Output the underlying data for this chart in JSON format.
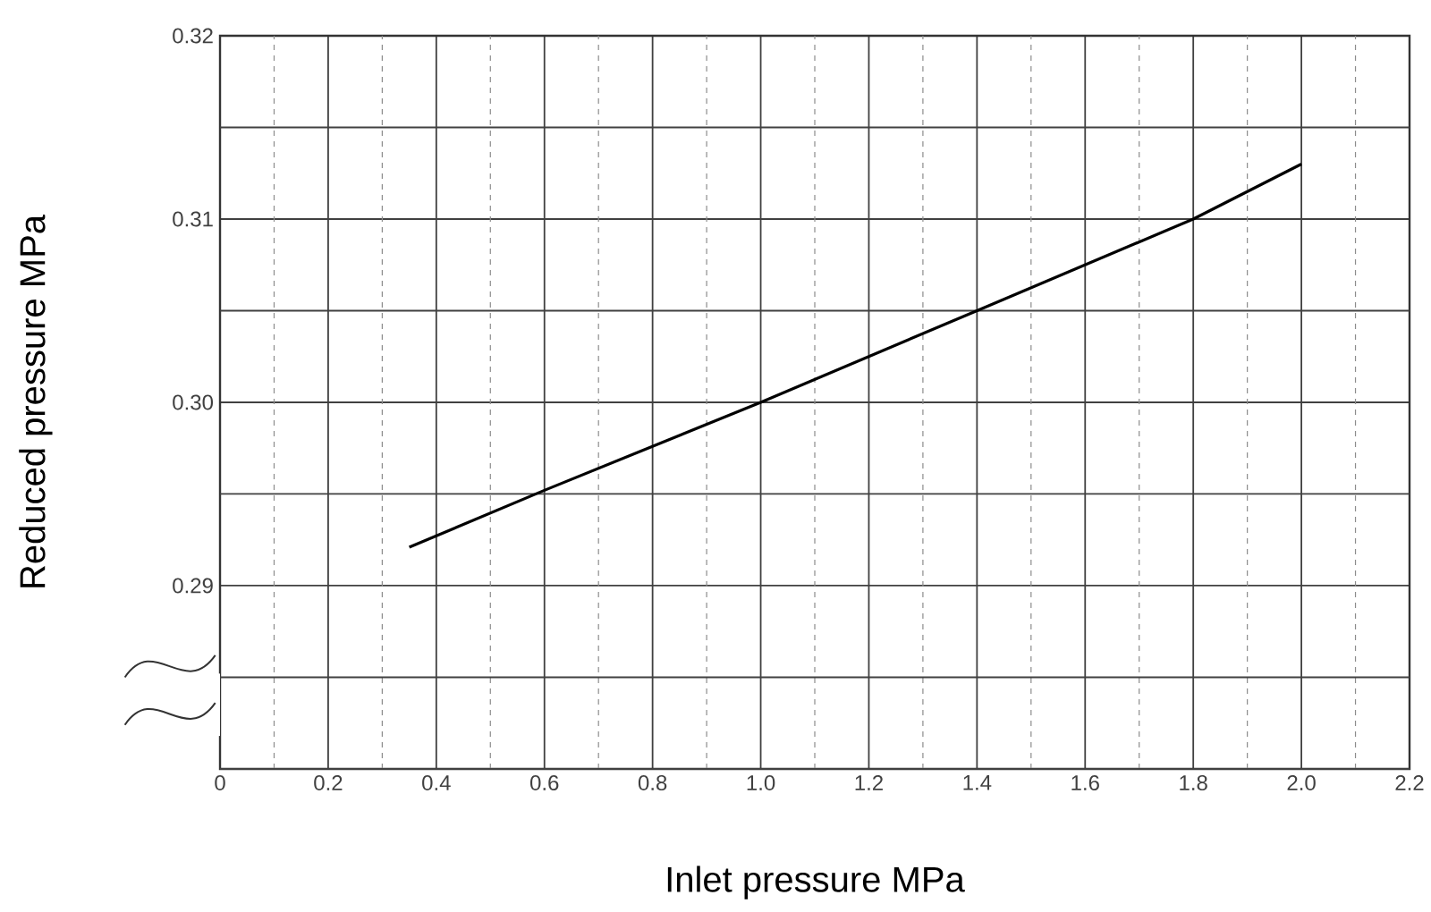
{
  "chart_data": {
    "type": "line",
    "xlabel": "Inlet pressure MPa",
    "ylabel": "Reduced pressure MPa",
    "xlim": [
      0,
      2.2
    ],
    "ylim": [
      0.28,
      0.32
    ],
    "xticks": [
      0,
      {
        "value": 0.1,
        "label": null
      },
      0.2,
      {
        "value": 0.3,
        "label": null
      },
      0.4,
      {
        "value": 0.5,
        "label": null
      },
      0.6,
      {
        "value": 0.7,
        "label": null
      },
      0.8,
      {
        "value": 0.9,
        "label": null
      },
      {
        "value": 1.0,
        "label": "1.0"
      },
      {
        "value": 1.1,
        "label": null
      },
      1.2,
      {
        "value": 1.3,
        "label": null
      },
      1.4,
      {
        "value": 1.5,
        "label": null
      },
      1.6,
      {
        "value": 1.7,
        "label": null
      },
      1.8,
      {
        "value": 1.9,
        "label": null
      },
      {
        "value": 2.0,
        "label": "2.0"
      },
      {
        "value": 2.1,
        "label": null
      },
      2.2
    ],
    "yticks": [
      {
        "value": 0.28,
        "label": null
      },
      {
        "value": 0.285,
        "label": null
      },
      0.29,
      {
        "value": 0.295,
        "label": null
      },
      {
        "value": 0.3,
        "label": "0.30"
      },
      {
        "value": 0.305,
        "label": null
      },
      0.31,
      {
        "value": 0.315,
        "label": null
      },
      0.32
    ],
    "grid": true,
    "line_style": "solid",
    "marker": "none",
    "series": [
      {
        "color": "#000000",
        "x": [
          0.35,
          0.6,
          1.0,
          1.4,
          1.8,
          2.0
        ],
        "values": [
          0.2921,
          0.2952,
          0.3,
          0.305,
          0.31,
          0.313
        ]
      }
    ]
  }
}
